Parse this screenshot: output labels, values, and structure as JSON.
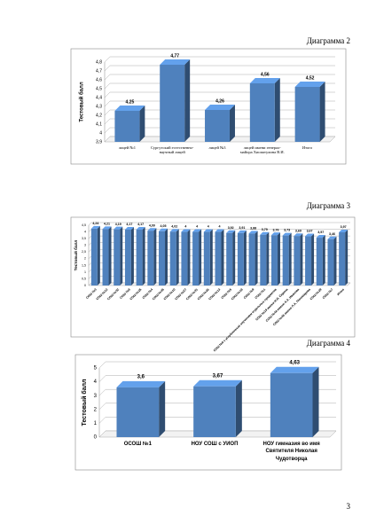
{
  "captions": [
    "Диаграмма 2",
    "Диаграмма 3",
    "Диаграмма 4"
  ],
  "page_number": "3",
  "chart_data": [
    {
      "type": "bar",
      "ylabel": "Тестовый балл",
      "color": "#4f81bd",
      "grid": true,
      "categories": [
        "лицей №1",
        "Сургутский естественно-научный лицей",
        "лицей №3",
        "лицей имени генерал-майора Хисматулина В.И.",
        "Итого"
      ],
      "values": [
        4.25,
        4.77,
        4.26,
        4.56,
        4.52
      ],
      "value_labels": [
        "4,25",
        "4,77",
        "4,26",
        "4,56",
        "4,52"
      ],
      "ylim": [
        3.9,
        4.8
      ],
      "yticks": [
        {
          "value": 3.9,
          "label": "3,9"
        },
        {
          "value": 4,
          "label": "4"
        },
        {
          "value": 4.1,
          "label": "4,1"
        },
        {
          "value": 4.2,
          "label": "4,2"
        },
        {
          "value": 4.3,
          "label": "4,3"
        },
        {
          "value": 4.4,
          "label": "4,4"
        },
        {
          "value": 4.5,
          "label": "4,5"
        },
        {
          "value": 4.6,
          "label": "4,6"
        },
        {
          "value": 4.7,
          "label": "4,7"
        },
        {
          "value": 4.8,
          "label": "4,8"
        }
      ]
    },
    {
      "type": "bar",
      "ylabel": "Тестовый балл",
      "color": "#4f81bd",
      "grid": true,
      "categories": [
        "СОШ №3",
        "СОШ №12",
        "СОШ №32",
        "СОШ №8",
        "СОШ №25",
        "СОШ №4",
        "СОШ №45",
        "СОШ №10",
        "СОШ №27",
        "СОШ №31",
        "СОШ №26",
        "СОШ №13",
        "СОШ №5",
        "СОШ №18",
        "СОШ №9",
        "СОШ №1",
        "СОШ №6 с углубленным изучением отдельных предметов",
        "СОШ №19 имени Н.И. Сирина",
        "СОШ №44 имени А.А. Иванова",
        "СОШ №46 имени Л.А. Пономарева",
        "СОШ №29",
        "СОШ №7",
        "Итого"
      ],
      "values": [
        4.24,
        4.21,
        4.19,
        4.17,
        4.17,
        4.09,
        4.05,
        4.02,
        4,
        4,
        4,
        4,
        3.92,
        3.91,
        3.88,
        3.79,
        3.76,
        3.73,
        3.69,
        3.67,
        3.57,
        3.46,
        3.97
      ],
      "value_labels": [
        "4,24",
        "4,21",
        "4,19",
        "4,17",
        "4,17",
        "4,09",
        "4,05",
        "4,02",
        "4",
        "4",
        "4",
        "4",
        "3,92",
        "3,91",
        "3,88",
        "3,79",
        "3,76",
        "3,73",
        "3,69",
        "3,67",
        "3,57",
        "3,46",
        "3,97"
      ],
      "ylim": [
        0,
        4.5
      ],
      "yticks": [
        0,
        {
          "value": 0.5,
          "label": "0,5"
        },
        1,
        {
          "value": 1.5,
          "label": "1,5"
        },
        2,
        {
          "value": 2.5,
          "label": "2,5"
        },
        3,
        {
          "value": 3.5,
          "label": "3,5"
        },
        4,
        {
          "value": 4.5,
          "label": "4,5"
        }
      ]
    },
    {
      "type": "bar",
      "ylabel": "Тестовый балл",
      "color": "#4f81bd",
      "grid": true,
      "categories": [
        "ОСОШ №1",
        "НОУ СОШ с УИОП",
        "НОУ гимназия во имя Святителя Николая Чудотворца"
      ],
      "values": [
        3.6,
        3.67,
        4.63
      ],
      "value_labels": [
        "3,6",
        "3,67",
        "4,63"
      ],
      "ylim": [
        0,
        5
      ],
      "yticks": [
        0,
        1,
        2,
        3,
        4,
        5
      ]
    }
  ]
}
